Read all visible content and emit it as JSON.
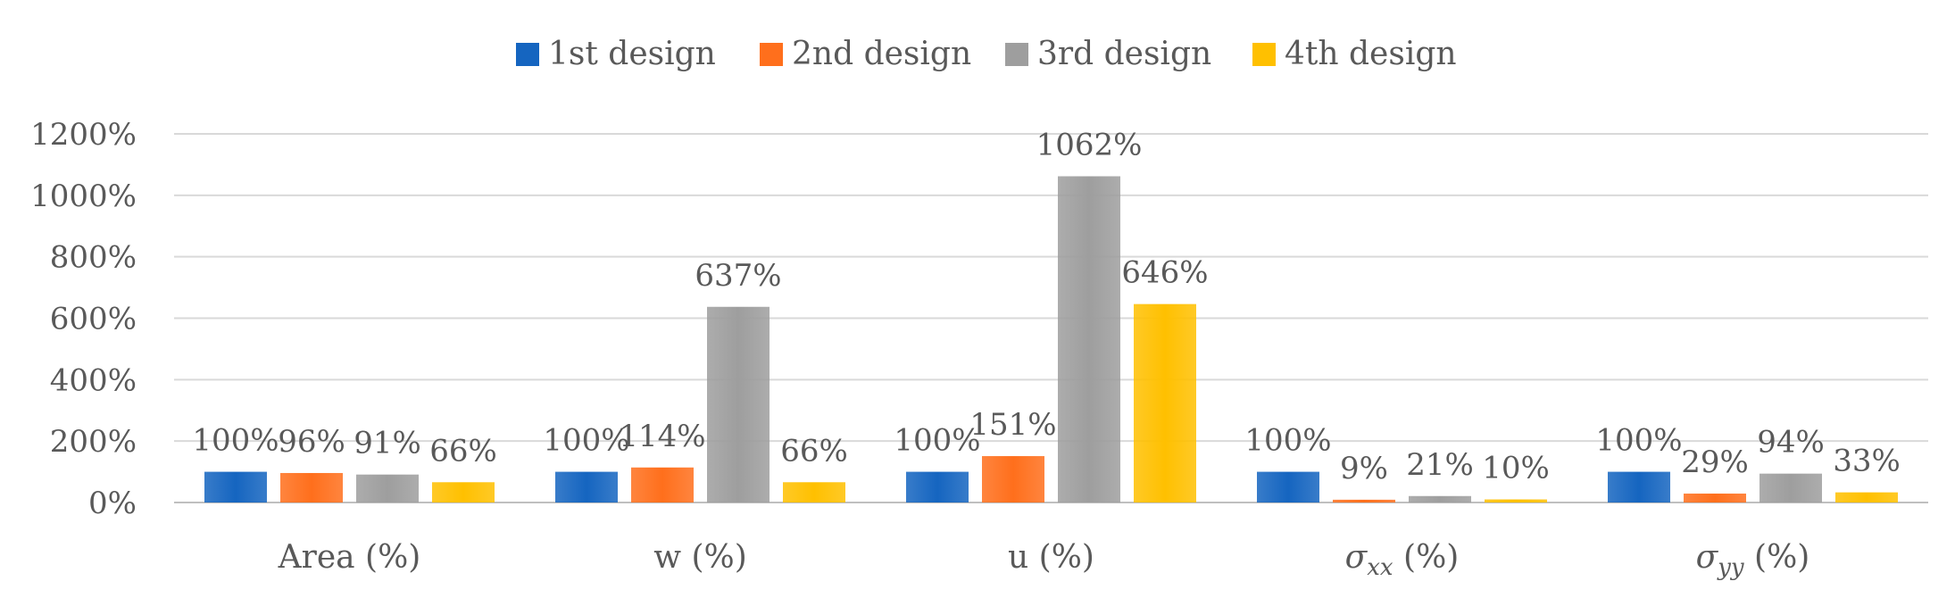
{
  "chart_data": {
    "type": "bar",
    "categories": [
      "Area (%)",
      "w (%)",
      "u (%)",
      "σxx (%)",
      "σyy (%)"
    ],
    "category_parts": [
      {
        "main": "Area (%)",
        "sub": "",
        "tail": ""
      },
      {
        "main": "w (%)",
        "sub": "",
        "tail": ""
      },
      {
        "main": "u (%)",
        "sub": "",
        "tail": ""
      },
      {
        "main": "σ",
        "sub": "xx",
        "tail": " (%)"
      },
      {
        "main": "σ",
        "sub": "yy",
        "tail": " (%)"
      }
    ],
    "series": [
      {
        "name": "1st design",
        "color": "#1565c0",
        "values": [
          100,
          100,
          100,
          100,
          100
        ],
        "labels": [
          "100%",
          "100%",
          "100%",
          "100%",
          "100%"
        ]
      },
      {
        "name": "2nd design",
        "color": "#ff6f1c",
        "values": [
          96,
          114,
          151,
          9,
          29
        ],
        "labels": [
          "96%",
          "114%",
          "151%",
          "9%",
          "29%"
        ]
      },
      {
        "name": "3rd design",
        "color": "#9e9e9e",
        "values": [
          91,
          637,
          1062,
          21,
          94
        ],
        "labels": [
          "91%",
          "637%",
          "1062%",
          "21%",
          "94%"
        ]
      },
      {
        "name": "4th design",
        "color": "#ffc000",
        "values": [
          66,
          66,
          646,
          10,
          33
        ],
        "labels": [
          "66%",
          "66%",
          "646%",
          "10%",
          "33%"
        ]
      }
    ],
    "yticks": [
      0,
      200,
      400,
      600,
      800,
      1000,
      1200
    ],
    "ytick_labels": [
      "0%",
      "200%",
      "400%",
      "600%",
      "800%",
      "1000%",
      "1200%"
    ],
    "ylim": [
      0,
      1200
    ],
    "grid": true,
    "legend_position": "top-center"
  }
}
